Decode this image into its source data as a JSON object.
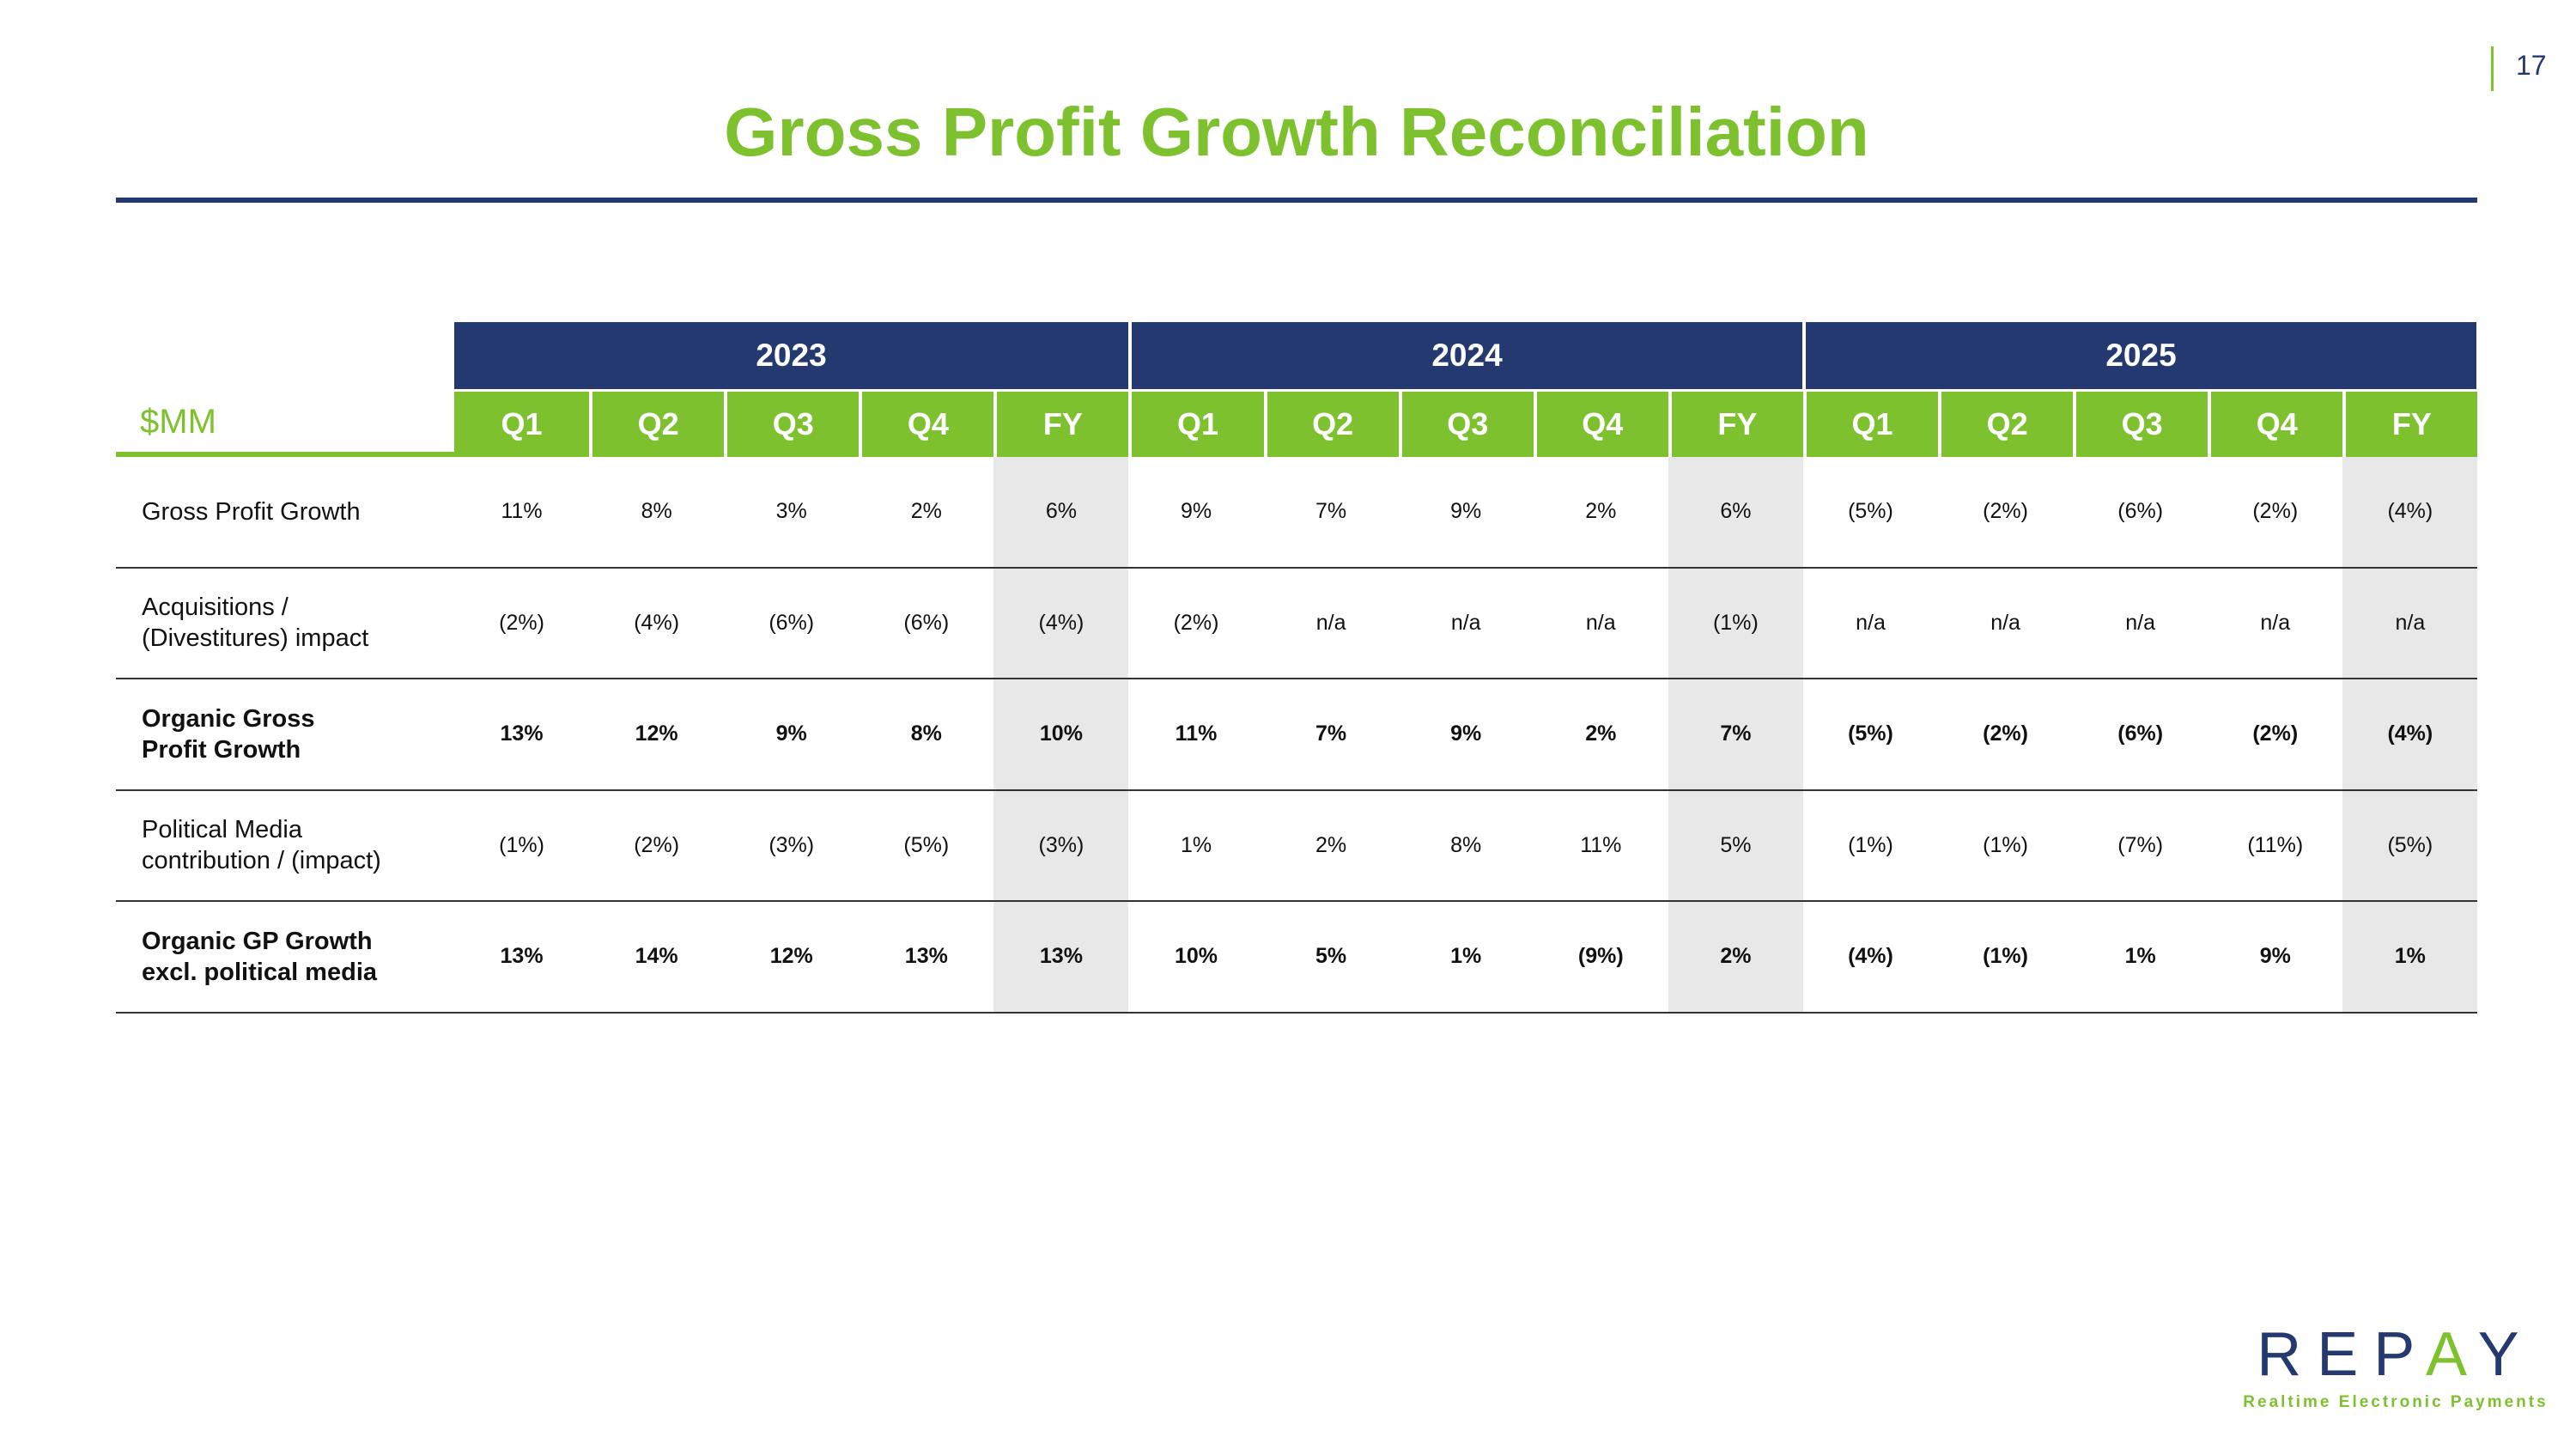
{
  "page_number": "17",
  "title": "Gross Profit Growth Reconciliation",
  "table": {
    "unit_label": "$MM",
    "years": [
      "2023",
      "2024",
      "2025"
    ],
    "periods": [
      "Q1",
      "Q2",
      "Q3",
      "Q4",
      "FY",
      "Q1",
      "Q2",
      "Q3",
      "Q4",
      "FY",
      "Q1",
      "Q2",
      "Q3",
      "Q4",
      "FY"
    ],
    "rows": [
      {
        "label": [
          "Gross Profit Growth"
        ],
        "bold": false,
        "values": [
          "11%",
          "8%",
          "3%",
          "2%",
          "6%",
          "9%",
          "7%",
          "9%",
          "2%",
          "6%",
          "(5%)",
          "(2%)",
          "(6%)",
          "(2%)",
          "(4%)"
        ]
      },
      {
        "label": [
          "Acquisitions /",
          "(Divestitures) impact"
        ],
        "bold": false,
        "values": [
          "(2%)",
          "(4%)",
          "(6%)",
          "(6%)",
          "(4%)",
          "(2%)",
          "n/a",
          "n/a",
          "n/a",
          "(1%)",
          "n/a",
          "n/a",
          "n/a",
          "n/a",
          "n/a"
        ]
      },
      {
        "label": [
          "Organic Gross",
          "Profit Growth"
        ],
        "bold": true,
        "values": [
          "13%",
          "12%",
          "9%",
          "8%",
          "10%",
          "11%",
          "7%",
          "9%",
          "2%",
          "7%",
          "(5%)",
          "(2%)",
          "(6%)",
          "(2%)",
          "(4%)"
        ]
      },
      {
        "label": [
          "Political Media",
          "contribution / (impact)"
        ],
        "bold": false,
        "values": [
          "(1%)",
          "(2%)",
          "(3%)",
          "(5%)",
          "(3%)",
          "1%",
          "2%",
          "8%",
          "11%",
          "5%",
          "(1%)",
          "(1%)",
          "(7%)",
          "(11%)",
          "(5%)"
        ]
      },
      {
        "label": [
          "Organic GP Growth",
          "excl. political media"
        ],
        "bold": true,
        "values": [
          "13%",
          "14%",
          "12%",
          "13%",
          "13%",
          "10%",
          "5%",
          "1%",
          "(9%)",
          "2%",
          "(4%)",
          "(1%)",
          "1%",
          "9%",
          "1%"
        ]
      }
    ]
  },
  "logo": {
    "word_left": "REP",
    "word_a": "A",
    "word_right": "Y",
    "tagline": "Realtime Electronic Payments"
  },
  "colors": {
    "brand_green": "#7dc22e",
    "brand_navy": "#24396f",
    "fy_shade": "#e8e8e8"
  }
}
